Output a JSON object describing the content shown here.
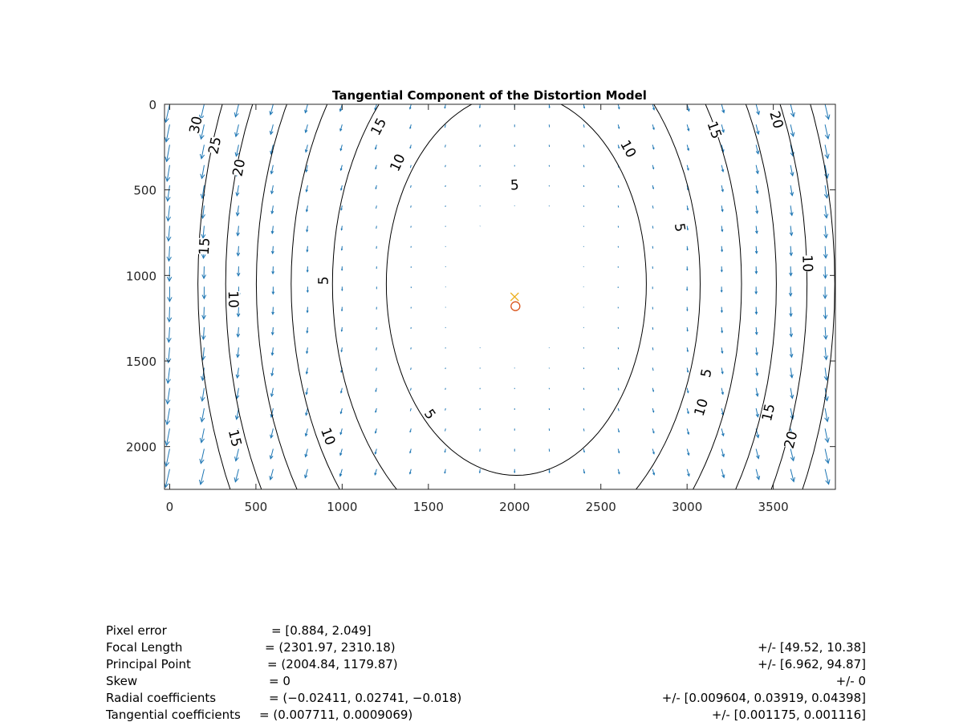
{
  "chart_data": {
    "type": "contour",
    "title": "Tangential Component of the Distortion Model",
    "xlabel": "",
    "ylabel": "",
    "xlim": [
      -30,
      3860
    ],
    "ylim": [
      2250,
      0
    ],
    "y_reversed": true,
    "x_ticks": [
      0,
      500,
      1000,
      1500,
      2000,
      2500,
      3000,
      3500
    ],
    "y_ticks": [
      0,
      500,
      1000,
      1500,
      2000
    ],
    "grid": false,
    "legend": "none",
    "colors": {
      "arrows": "#1f77b4",
      "contours": "#000000",
      "principal_point": "#d95319",
      "image_center": "#edb120"
    },
    "markers": [
      {
        "name": "image center",
        "symbol": "x",
        "x": 2000,
        "y": 1125
      },
      {
        "name": "principal point",
        "symbol": "o",
        "x": 2004.84,
        "y": 1179.87
      }
    ],
    "contour_center": {
      "x": 2010,
      "y": 1050
    },
    "contours": [
      {
        "level": 5,
        "label_points": [
          [
            2000,
            470
          ],
          [
            2960,
            720
          ],
          [
            890,
            1030
          ],
          [
            3110,
            1570
          ],
          [
            1510,
            1810
          ]
        ]
      },
      {
        "level": 10,
        "label_points": [
          [
            2660,
            260
          ],
          [
            1320,
            340
          ],
          [
            3700,
            930
          ],
          [
            370,
            1140
          ],
          [
            3080,
            1770
          ],
          [
            920,
            1940
          ]
        ]
      },
      {
        "level": 15,
        "label_points": [
          [
            1210,
            130
          ],
          [
            3160,
            150
          ],
          [
            200,
            830
          ],
          [
            3470,
            1800
          ],
          [
            380,
            1950
          ]
        ]
      },
      {
        "level": 20,
        "label_points": [
          [
            3520,
            90
          ],
          [
            400,
            370
          ],
          [
            3600,
            1960
          ]
        ]
      },
      {
        "level": 25,
        "label_points": [
          [
            260,
            240
          ]
        ]
      },
      {
        "level": 30,
        "label_points": [
          [
            150,
            120
          ]
        ]
      }
    ]
  },
  "parameters": [
    {
      "label": "Pixel error",
      "value": "= [0.884, 2.049]",
      "error": ""
    },
    {
      "label": "Focal Length",
      "value": "= (2301.97, 2310.18)",
      "error": "+/- [49.52, 10.38]"
    },
    {
      "label": "Principal Point",
      "value": "= (2004.84, 1179.87)",
      "error": "+/- [6.962, 94.87]"
    },
    {
      "label": "Skew",
      "value": "= 0",
      "error": "+/- 0"
    },
    {
      "label": "Radial coefficients",
      "value": "= (−0.02411, 0.02741, −0.018)",
      "error": "+/- [0.009604, 0.03919, 0.04398]"
    },
    {
      "label": "Tangential coefficients",
      "value": "= (0.007711, 0.0009069)",
      "error": "+/- [0.001175, 0.001116]"
    }
  ]
}
